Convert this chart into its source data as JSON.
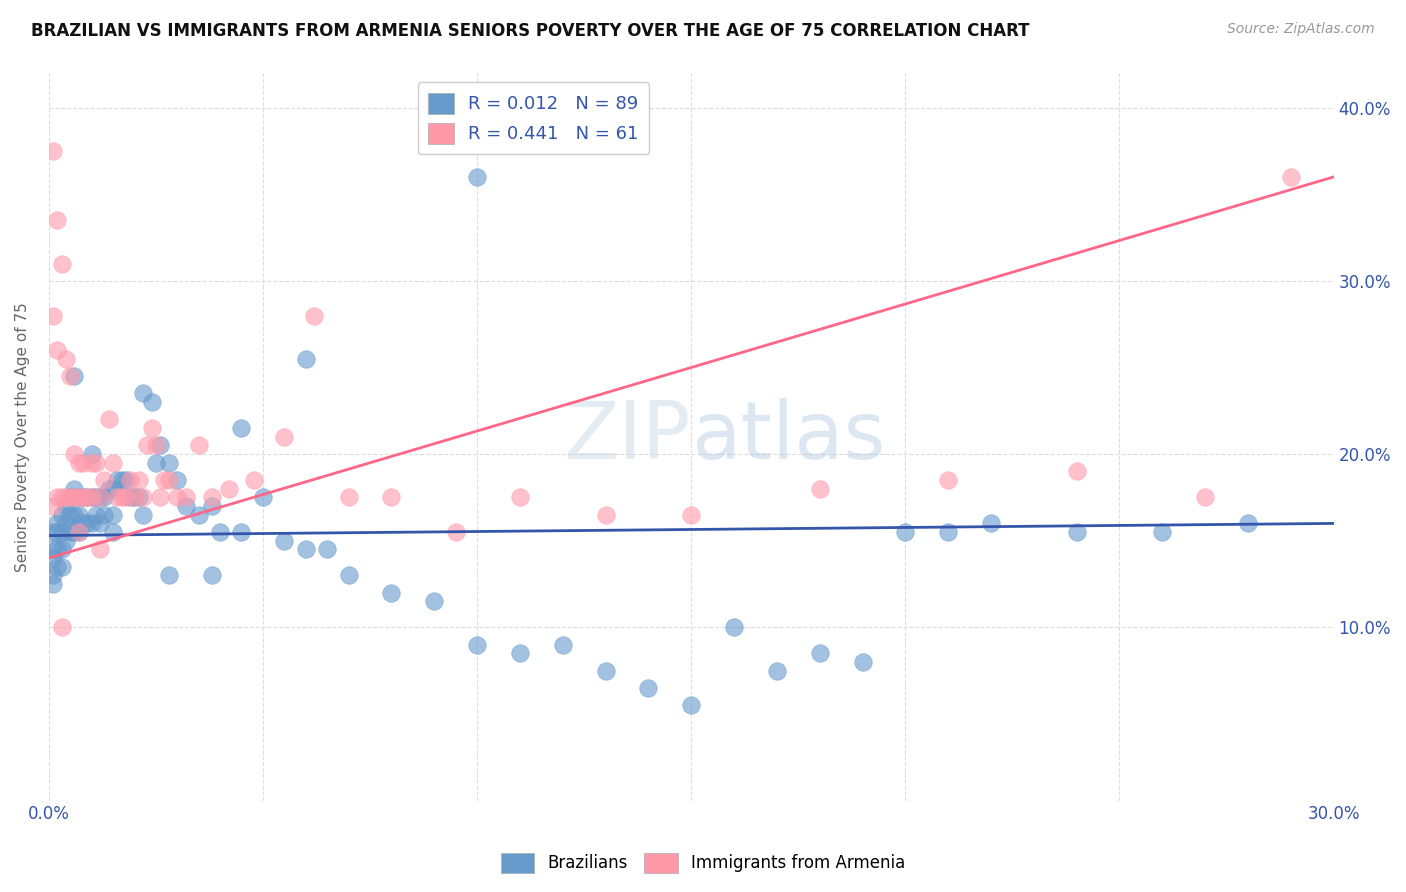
{
  "title": "BRAZILIAN VS IMMIGRANTS FROM ARMENIA SENIORS POVERTY OVER THE AGE OF 75 CORRELATION CHART",
  "source": "Source: ZipAtlas.com",
  "ylabel": "Seniors Poverty Over the Age of 75",
  "xlim": [
    0.0,
    0.3
  ],
  "ylim": [
    0.0,
    0.42
  ],
  "xticks": [
    0.0,
    0.05,
    0.1,
    0.15,
    0.2,
    0.25,
    0.3
  ],
  "xtick_labels": [
    "0.0%",
    "",
    "",
    "",
    "",
    "",
    "30.0%"
  ],
  "yticks": [
    0.0,
    0.1,
    0.2,
    0.3,
    0.4
  ],
  "ytick_labels": [
    "",
    "10.0%",
    "20.0%",
    "30.0%",
    "40.0%"
  ],
  "blue_color": "#6699CC",
  "pink_color": "#FF99AA",
  "blue_line_color": "#3355AA",
  "pink_line_color": "#FF6688",
  "legend_R_blue": "0.012",
  "legend_N_blue": "89",
  "legend_R_pink": "0.441",
  "legend_N_pink": "61",
  "blue_line_x": [
    0.0,
    0.3
  ],
  "blue_line_y": [
    0.153,
    0.16
  ],
  "pink_line_x": [
    0.0,
    0.3
  ],
  "pink_line_y": [
    0.14,
    0.36
  ],
  "blue_scatter_x": [
    0.001,
    0.001,
    0.001,
    0.001,
    0.001,
    0.002,
    0.002,
    0.002,
    0.002,
    0.003,
    0.003,
    0.003,
    0.003,
    0.004,
    0.004,
    0.004,
    0.005,
    0.005,
    0.005,
    0.006,
    0.006,
    0.006,
    0.007,
    0.007,
    0.007,
    0.008,
    0.008,
    0.009,
    0.009,
    0.01,
    0.01,
    0.011,
    0.011,
    0.012,
    0.012,
    0.013,
    0.013,
    0.014,
    0.015,
    0.015,
    0.016,
    0.017,
    0.018,
    0.019,
    0.02,
    0.021,
    0.022,
    0.024,
    0.025,
    0.026,
    0.028,
    0.03,
    0.032,
    0.035,
    0.038,
    0.04,
    0.045,
    0.05,
    0.055,
    0.06,
    0.065,
    0.07,
    0.08,
    0.09,
    0.1,
    0.11,
    0.12,
    0.13,
    0.14,
    0.15,
    0.16,
    0.17,
    0.18,
    0.19,
    0.2,
    0.21,
    0.22,
    0.24,
    0.26,
    0.28,
    0.1,
    0.06,
    0.045,
    0.038,
    0.028,
    0.022,
    0.015,
    0.01,
    0.006
  ],
  "blue_scatter_y": [
    0.155,
    0.145,
    0.14,
    0.13,
    0.125,
    0.16,
    0.155,
    0.145,
    0.135,
    0.165,
    0.155,
    0.145,
    0.135,
    0.17,
    0.16,
    0.15,
    0.175,
    0.165,
    0.155,
    0.18,
    0.165,
    0.155,
    0.175,
    0.165,
    0.155,
    0.175,
    0.16,
    0.175,
    0.16,
    0.175,
    0.16,
    0.175,
    0.165,
    0.175,
    0.16,
    0.175,
    0.165,
    0.18,
    0.18,
    0.165,
    0.185,
    0.185,
    0.185,
    0.175,
    0.175,
    0.175,
    0.235,
    0.23,
    0.195,
    0.205,
    0.195,
    0.185,
    0.17,
    0.165,
    0.17,
    0.155,
    0.155,
    0.175,
    0.15,
    0.145,
    0.145,
    0.13,
    0.12,
    0.115,
    0.09,
    0.085,
    0.09,
    0.075,
    0.065,
    0.055,
    0.1,
    0.075,
    0.085,
    0.08,
    0.155,
    0.155,
    0.16,
    0.155,
    0.155,
    0.16,
    0.36,
    0.255,
    0.215,
    0.13,
    0.13,
    0.165,
    0.155,
    0.2,
    0.245
  ],
  "pink_scatter_x": [
    0.001,
    0.001,
    0.001,
    0.002,
    0.002,
    0.002,
    0.003,
    0.003,
    0.004,
    0.004,
    0.005,
    0.005,
    0.006,
    0.006,
    0.007,
    0.007,
    0.008,
    0.008,
    0.009,
    0.01,
    0.01,
    0.011,
    0.012,
    0.013,
    0.014,
    0.015,
    0.016,
    0.017,
    0.018,
    0.019,
    0.02,
    0.021,
    0.022,
    0.023,
    0.024,
    0.025,
    0.026,
    0.027,
    0.028,
    0.03,
    0.032,
    0.035,
    0.038,
    0.042,
    0.048,
    0.055,
    0.062,
    0.07,
    0.08,
    0.095,
    0.11,
    0.13,
    0.15,
    0.18,
    0.21,
    0.24,
    0.27,
    0.29,
    0.003,
    0.007,
    0.012
  ],
  "pink_scatter_y": [
    0.375,
    0.28,
    0.17,
    0.335,
    0.26,
    0.175,
    0.31,
    0.175,
    0.255,
    0.175,
    0.245,
    0.175,
    0.2,
    0.175,
    0.195,
    0.175,
    0.195,
    0.175,
    0.175,
    0.195,
    0.175,
    0.195,
    0.175,
    0.185,
    0.22,
    0.195,
    0.175,
    0.175,
    0.175,
    0.185,
    0.175,
    0.185,
    0.175,
    0.205,
    0.215,
    0.205,
    0.175,
    0.185,
    0.185,
    0.175,
    0.175,
    0.205,
    0.175,
    0.18,
    0.185,
    0.21,
    0.28,
    0.175,
    0.175,
    0.155,
    0.175,
    0.165,
    0.165,
    0.18,
    0.185,
    0.19,
    0.175,
    0.36,
    0.1,
    0.155,
    0.145
  ]
}
